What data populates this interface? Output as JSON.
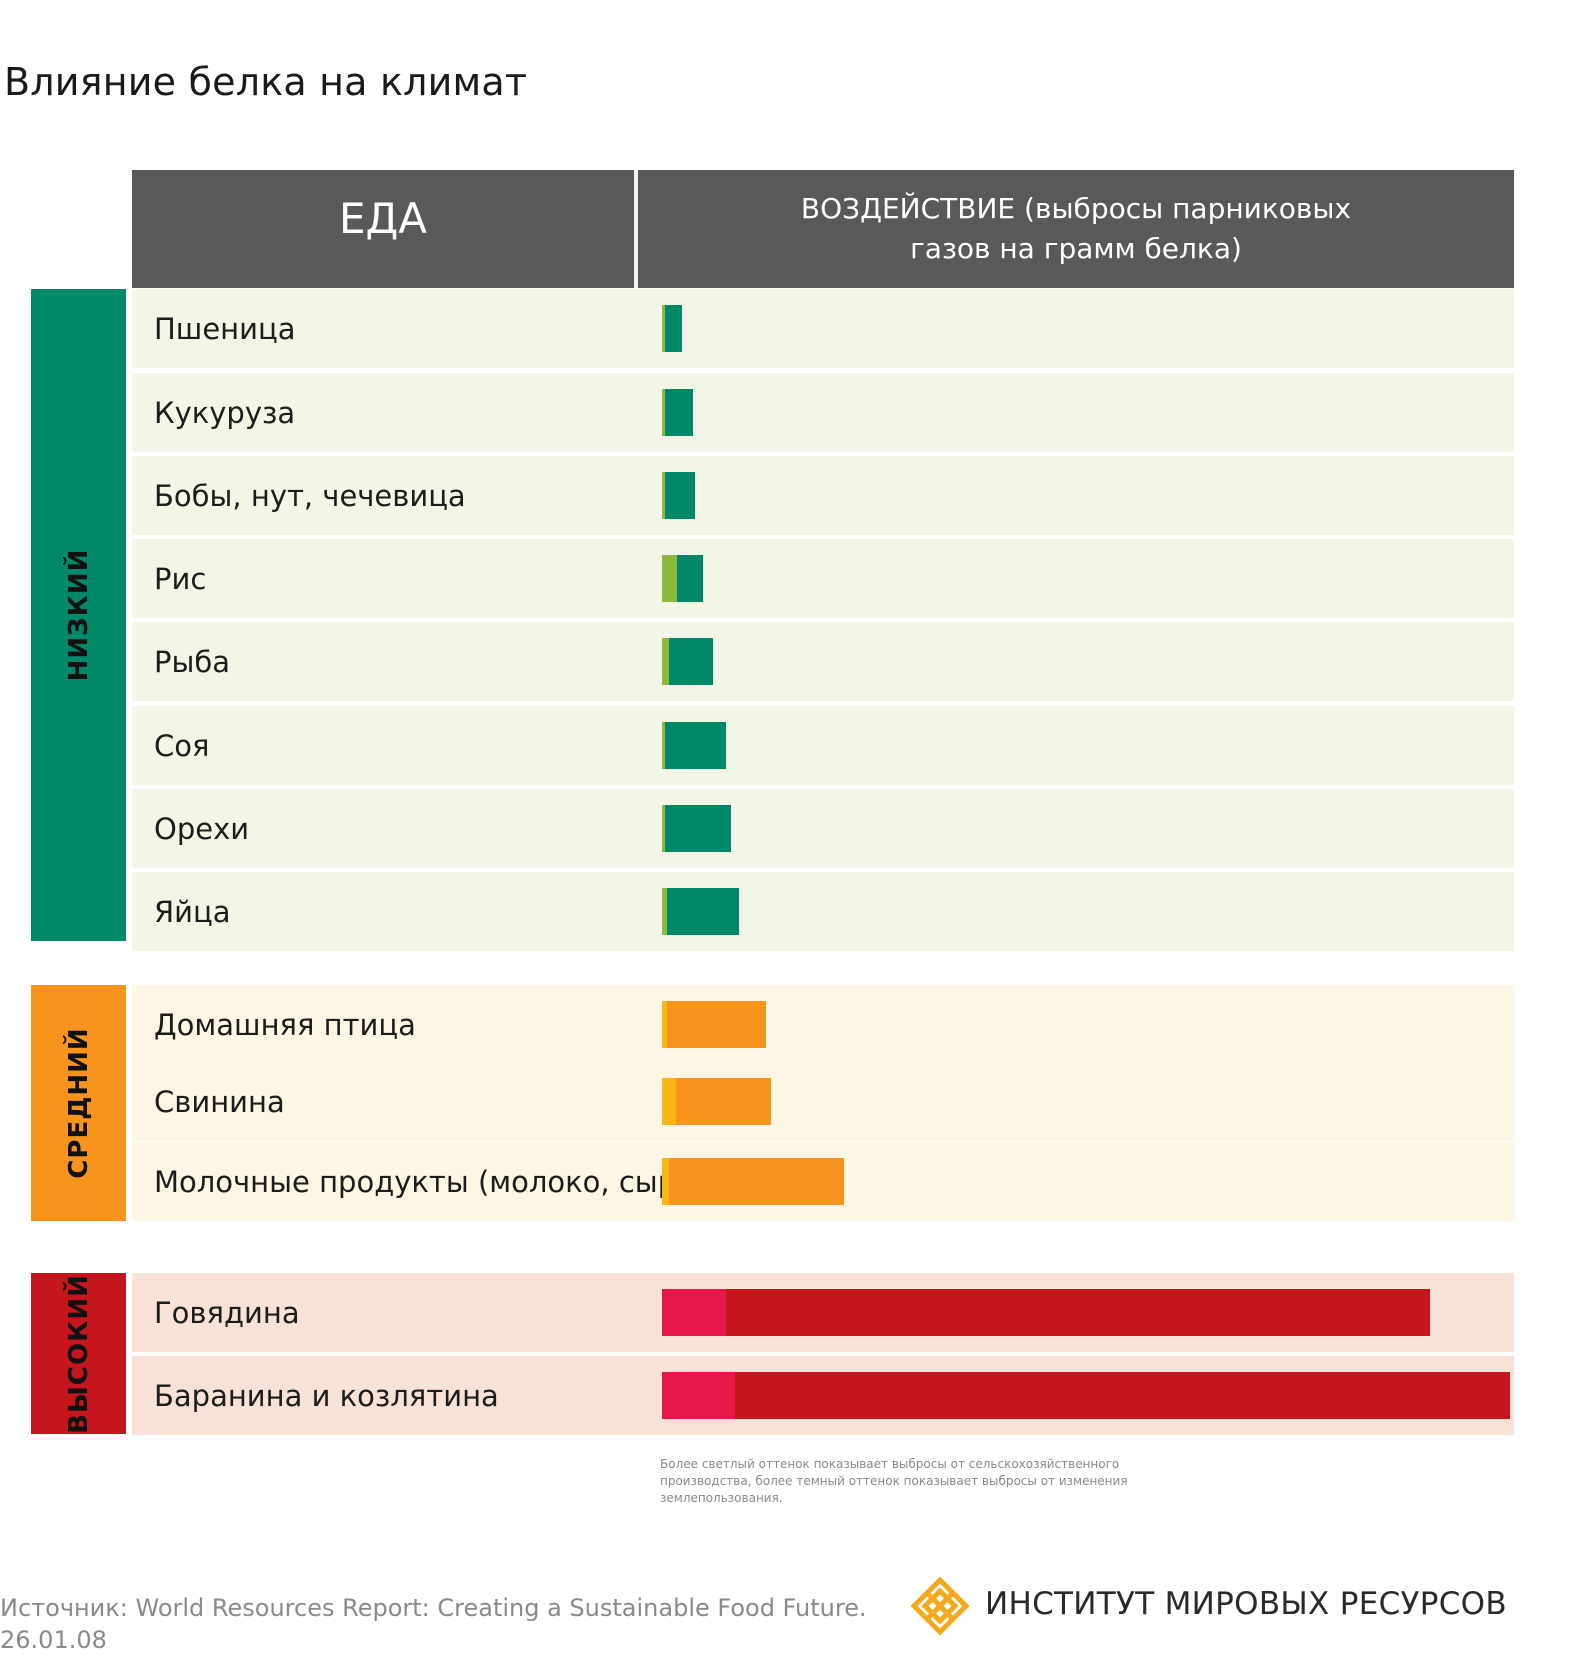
{
  "title": "Влияние белка на климат",
  "header": {
    "food": "ЕДА",
    "impact": "ВОЗДЕЙСТВИЕ (выбросы парниковых газов на грамм белка)"
  },
  "categories": [
    {
      "key": "low",
      "label": "НИЗКИЙ",
      "color": "#008969",
      "row_bg": "#f2f6e6"
    },
    {
      "key": "medium",
      "label": "СРЕДНИЙ",
      "color": "#f7941e",
      "row_bg": "#fdf6e4"
    },
    {
      "key": "high",
      "label": "ВЫСОКИЙ",
      "color": "#c4161c",
      "row_bg": "#f8e2d8"
    }
  ],
  "chart_data": {
    "type": "bar",
    "orientation": "horizontal",
    "stacked": true,
    "title": "Влияние белка на климат",
    "xlabel": "ВОЗДЕЙСТВИЕ (выбросы парниковых газов на грамм белка)",
    "ylabel": "ЕДА",
    "xlim": [
      0,
      800
    ],
    "categories": [
      "Пшеница",
      "Кукуруза",
      "Бобы, нут, чечевица",
      "Рис",
      "Рыба",
      "Соя",
      "Орехи",
      "Яйца",
      "Домашняя птица",
      "Свинина",
      "Молочные продукты (молоко, сыр)",
      "Говядина",
      "Баранина и козлятина"
    ],
    "impact_level": [
      "low",
      "low",
      "low",
      "low",
      "low",
      "low",
      "low",
      "low",
      "medium",
      "medium",
      "medium",
      "high",
      "high"
    ],
    "series": [
      {
        "name": "Сельскохозяйственное производство (светлый оттенок)",
        "colors": {
          "low": "#8cb83c",
          "medium": "#fbb516",
          "high": "#e8174a"
        },
        "values": [
          3,
          3,
          3,
          14,
          7,
          3,
          3,
          5,
          5,
          13,
          7,
          60,
          68
        ]
      },
      {
        "name": "Изменение землепользования (темный оттенок)",
        "colors": {
          "low": "#008969",
          "medium": "#f7941e",
          "high": "#c4161c"
        },
        "values": [
          16,
          26,
          28,
          24,
          41,
          57,
          62,
          67,
          92,
          89,
          163,
          659,
          725
        ]
      }
    ]
  },
  "note": "Более светлый оттенок показывает выбросы от сельскохозяйственного производства, более темный оттенок показывает выбросы от изменения землепользования.",
  "source": {
    "line1": "Источник: World Resources Report: Creating a Sustainable Food Future.",
    "line2": "26.01.08"
  },
  "org": {
    "name": "ИНСТИТУТ МИРОВЫХ РЕСУРСОВ",
    "logo_icon": "wri-logo-icon"
  }
}
